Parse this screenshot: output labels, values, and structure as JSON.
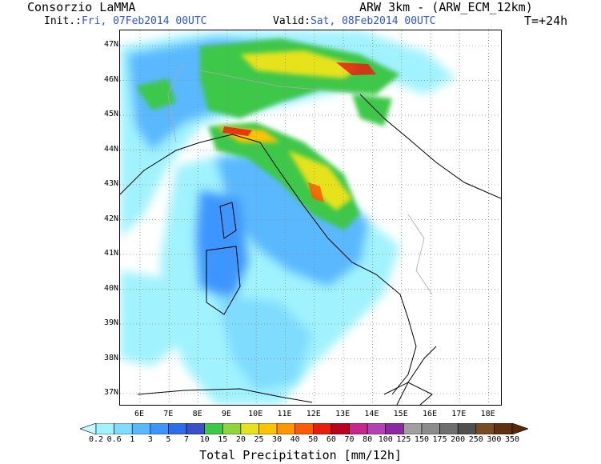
{
  "header": {
    "source": "Consorzio LaMMA",
    "model": "ARW 3km - (ARW_ECM_12km)",
    "init_label": "Init.:",
    "init_value": "Fri, 07Feb2014 00UTC",
    "valid_label": "Valid:",
    "valid_value": "Sat, 08Feb2014 00UTC",
    "step": "T=+24h"
  },
  "map": {
    "lat_labels": [
      "47N",
      "46N",
      "45N",
      "44N",
      "43N",
      "42N",
      "41N",
      "40N",
      "39N",
      "38N",
      "37N"
    ],
    "lon_labels": [
      "6E",
      "7E",
      "8E",
      "9E",
      "10E",
      "11E",
      "12E",
      "13E",
      "14E",
      "15E",
      "16E",
      "17E",
      "18E"
    ]
  },
  "colorbar": {
    "title": "Total Precipitation [mm/12h]",
    "ticks": [
      "0.2",
      "0.6",
      "1",
      "3",
      "5",
      "7",
      "10",
      "15",
      "20",
      "25",
      "30",
      "40",
      "50",
      "60",
      "70",
      "80",
      "100",
      "125",
      "150",
      "175",
      "200",
      "250",
      "300",
      "350"
    ],
    "colors": [
      "#a0f2ff",
      "#7fdcff",
      "#5ab8ff",
      "#3d96ff",
      "#2f6de8",
      "#3b4ecb",
      "#3ec84a",
      "#8fd63a",
      "#e6e21e",
      "#ffc400",
      "#ff9600",
      "#ff5a00",
      "#e61e10",
      "#b80020",
      "#c8288c",
      "#b441b4",
      "#8c28a0",
      "#a0a0a0",
      "#8c8c8c",
      "#6e6e6e",
      "#505050",
      "#7a4a20",
      "#603010"
    ]
  }
}
